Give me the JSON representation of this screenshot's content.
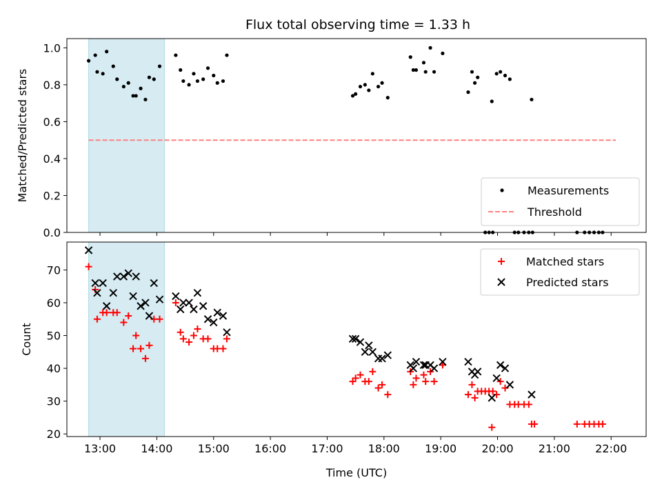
{
  "chart_data": {
    "title": "Flux total observing time = 1.33 h",
    "xlabel": "Time (UTC)",
    "x_ticks": [
      "13:00",
      "14:00",
      "15:00",
      "16:00",
      "17:00",
      "18:00",
      "19:00",
      "20:00",
      "21:00",
      "22:00"
    ],
    "x_range": [
      "12:25",
      "22:37"
    ],
    "shaded_span": {
      "start": "12:48",
      "end": "14:08",
      "color": "#add8e6"
    },
    "top": {
      "type": "scatter",
      "ylabel": "Matched/Predicted stars",
      "ylim": [
        0,
        1.05
      ],
      "y_ticks": [
        "0.0",
        "0.2",
        "0.4",
        "0.6",
        "0.8",
        "1.0"
      ],
      "legend_position": "bottom-right",
      "series": [
        {
          "name": "Measurements",
          "color": "#000000",
          "points": [
            [
              "12:48",
              0.93
            ],
            [
              "12:55",
              0.96
            ],
            [
              "12:57",
              0.87
            ],
            [
              "13:03",
              0.86
            ],
            [
              "13:07",
              0.98
            ],
            [
              "13:14",
              0.9
            ],
            [
              "13:18",
              0.83
            ],
            [
              "13:25",
              0.79
            ],
            [
              "13:30",
              0.81
            ],
            [
              "13:35",
              0.74
            ],
            [
              "13:38",
              0.74
            ],
            [
              "13:43",
              0.78
            ],
            [
              "13:48",
              0.72
            ],
            [
              "13:52",
              0.84
            ],
            [
              "13:57",
              0.83
            ],
            [
              "14:03",
              0.9
            ],
            [
              "14:20",
              0.96
            ],
            [
              "14:25",
              0.88
            ],
            [
              "14:28",
              0.82
            ],
            [
              "14:34",
              0.8
            ],
            [
              "14:39",
              0.86
            ],
            [
              "14:43",
              0.82
            ],
            [
              "14:49",
              0.83
            ],
            [
              "14:54",
              0.89
            ],
            [
              "15:00",
              0.85
            ],
            [
              "15:04",
              0.81
            ],
            [
              "15:10",
              0.82
            ],
            [
              "15:14",
              0.96
            ],
            [
              "17:27",
              0.74
            ],
            [
              "17:30",
              0.75
            ],
            [
              "17:35",
              0.79
            ],
            [
              "17:40",
              0.8
            ],
            [
              "17:44",
              0.77
            ],
            [
              "17:48",
              0.86
            ],
            [
              "17:54",
              0.79
            ],
            [
              "17:58",
              0.81
            ],
            [
              "18:04",
              0.73
            ],
            [
              "18:28",
              0.95
            ],
            [
              "18:31",
              0.88
            ],
            [
              "18:34",
              0.88
            ],
            [
              "18:42",
              0.92
            ],
            [
              "18:44",
              0.87
            ],
            [
              "18:49",
              1.0
            ],
            [
              "18:53",
              0.87
            ],
            [
              "19:02",
              0.97
            ],
            [
              "19:29",
              0.76
            ],
            [
              "19:33",
              0.87
            ],
            [
              "19:36",
              0.81
            ],
            [
              "19:39",
              0.84
            ],
            [
              "19:54",
              0.71
            ],
            [
              "19:59",
              0.86
            ],
            [
              "20:03",
              0.87
            ],
            [
              "20:08",
              0.85
            ],
            [
              "20:13",
              0.83
            ],
            [
              "20:36",
              0.72
            ],
            [
              "19:47",
              0.0
            ],
            [
              "19:51",
              0.0
            ],
            [
              "19:55",
              0.0
            ],
            [
              "20:18",
              0.0
            ],
            [
              "20:22",
              0.0
            ],
            [
              "20:28",
              0.0
            ],
            [
              "20:33",
              0.0
            ],
            [
              "20:37",
              0.0
            ],
            [
              "21:24",
              0.0
            ],
            [
              "21:32",
              0.0
            ],
            [
              "21:37",
              0.0
            ],
            [
              "21:42",
              0.0
            ],
            [
              "21:47",
              0.0
            ],
            [
              "21:51",
              0.0
            ]
          ]
        },
        {
          "name": "Threshold",
          "type": "line",
          "style": "dashed",
          "color": "#ff7f7f",
          "points": [
            [
              "12:48",
              0.5
            ],
            [
              "22:05",
              0.5
            ]
          ]
        }
      ]
    },
    "bottom": {
      "type": "scatter",
      "ylabel": "Count",
      "ylim": [
        19.2,
        78.5
      ],
      "y_ticks": [
        "20",
        "30",
        "40",
        "50",
        "60",
        "70"
      ],
      "legend_position": "top-right",
      "series": [
        {
          "name": "Matched stars",
          "marker": "+",
          "color": "#ff0000",
          "points": [
            [
              "12:48",
              71
            ],
            [
              "12:55",
              64
            ],
            [
              "12:57",
              55
            ],
            [
              "13:03",
              57
            ],
            [
              "13:07",
              57
            ],
            [
              "13:14",
              57
            ],
            [
              "13:18",
              57
            ],
            [
              "13:25",
              54
            ],
            [
              "13:30",
              56
            ],
            [
              "13:35",
              46
            ],
            [
              "13:38",
              50
            ],
            [
              "13:43",
              46
            ],
            [
              "13:48",
              43
            ],
            [
              "13:52",
              47
            ],
            [
              "13:57",
              55
            ],
            [
              "14:03",
              55
            ],
            [
              "14:20",
              60
            ],
            [
              "14:25",
              51
            ],
            [
              "14:28",
              49
            ],
            [
              "14:34",
              48
            ],
            [
              "14:39",
              50
            ],
            [
              "14:43",
              52
            ],
            [
              "14:49",
              49
            ],
            [
              "14:54",
              49
            ],
            [
              "15:00",
              46
            ],
            [
              "15:04",
              46
            ],
            [
              "15:10",
              46
            ],
            [
              "15:14",
              49
            ],
            [
              "17:27",
              36
            ],
            [
              "17:30",
              37
            ],
            [
              "17:35",
              38
            ],
            [
              "17:40",
              36
            ],
            [
              "17:44",
              36
            ],
            [
              "17:48",
              39
            ],
            [
              "17:54",
              34
            ],
            [
              "17:58",
              35
            ],
            [
              "18:04",
              32
            ],
            [
              "18:28",
              39
            ],
            [
              "18:31",
              35
            ],
            [
              "18:34",
              37
            ],
            [
              "18:42",
              38
            ],
            [
              "18:44",
              36
            ],
            [
              "18:49",
              39
            ],
            [
              "18:53",
              36
            ],
            [
              "19:02",
              41
            ],
            [
              "19:29",
              32
            ],
            [
              "19:33",
              35
            ],
            [
              "19:36",
              31
            ],
            [
              "19:39",
              33
            ],
            [
              "19:43",
              33
            ],
            [
              "19:47",
              33
            ],
            [
              "19:51",
              33
            ],
            [
              "19:55",
              33
            ],
            [
              "19:54",
              22
            ],
            [
              "19:59",
              32
            ],
            [
              "20:03",
              36
            ],
            [
              "20:08",
              34
            ],
            [
              "20:13",
              29
            ],
            [
              "20:18",
              29
            ],
            [
              "20:22",
              29
            ],
            [
              "20:28",
              29
            ],
            [
              "20:33",
              29
            ],
            [
              "20:36",
              23
            ],
            [
              "20:39",
              23
            ],
            [
              "21:24",
              23
            ],
            [
              "21:32",
              23
            ],
            [
              "21:37",
              23
            ],
            [
              "21:42",
              23
            ],
            [
              "21:47",
              23
            ],
            [
              "21:51",
              23
            ]
          ]
        },
        {
          "name": "Predicted stars",
          "marker": "x",
          "color": "#000000",
          "points": [
            [
              "12:48",
              76
            ],
            [
              "12:55",
              66
            ],
            [
              "12:57",
              63
            ],
            [
              "13:03",
              66
            ],
            [
              "13:07",
              59
            ],
            [
              "13:14",
              63
            ],
            [
              "13:18",
              68
            ],
            [
              "13:25",
              68
            ],
            [
              "13:30",
              69
            ],
            [
              "13:35",
              62
            ],
            [
              "13:38",
              68
            ],
            [
              "13:43",
              59
            ],
            [
              "13:48",
              60
            ],
            [
              "13:52",
              56
            ],
            [
              "13:57",
              66
            ],
            [
              "14:03",
              61
            ],
            [
              "14:20",
              62
            ],
            [
              "14:25",
              58
            ],
            [
              "14:28",
              60
            ],
            [
              "14:34",
              60
            ],
            [
              "14:39",
              58
            ],
            [
              "14:43",
              63
            ],
            [
              "14:49",
              59
            ],
            [
              "14:54",
              55
            ],
            [
              "15:00",
              54
            ],
            [
              "15:04",
              57
            ],
            [
              "15:10",
              56
            ],
            [
              "15:14",
              51
            ],
            [
              "17:27",
              49
            ],
            [
              "17:30",
              49
            ],
            [
              "17:35",
              48
            ],
            [
              "17:40",
              45
            ],
            [
              "17:44",
              47
            ],
            [
              "17:48",
              45
            ],
            [
              "17:54",
              43
            ],
            [
              "17:58",
              43
            ],
            [
              "18:04",
              44
            ],
            [
              "18:28",
              41
            ],
            [
              "18:31",
              40
            ],
            [
              "18:34",
              42
            ],
            [
              "18:42",
              41
            ],
            [
              "18:44",
              41
            ],
            [
              "18:49",
              41
            ],
            [
              "18:53",
              40
            ],
            [
              "19:02",
              42
            ],
            [
              "19:29",
              42
            ],
            [
              "19:33",
              39
            ],
            [
              "19:36",
              38
            ],
            [
              "19:39",
              39
            ],
            [
              "19:54",
              31
            ],
            [
              "19:59",
              37
            ],
            [
              "20:03",
              41
            ],
            [
              "20:08",
              40
            ],
            [
              "20:13",
              35
            ],
            [
              "20:36",
              32
            ]
          ]
        }
      ]
    }
  }
}
